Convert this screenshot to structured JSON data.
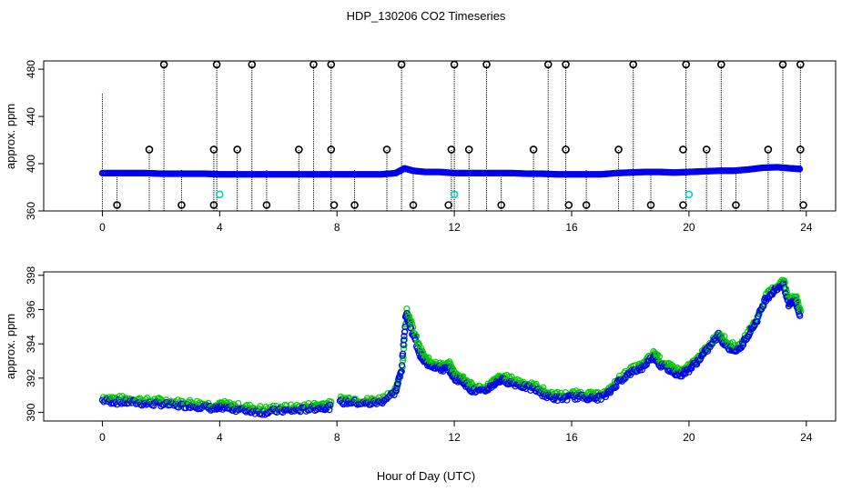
{
  "chart_data": [
    {
      "type": "scatter",
      "panel": "top",
      "title": "HDP_130206  CO2 Timeseries",
      "xlabel": "",
      "ylabel": "approx. ppm",
      "xlim": [
        -2,
        25
      ],
      "ylim": [
        360,
        487
      ],
      "x_ticks": [
        0,
        4,
        8,
        12,
        16,
        20,
        24
      ],
      "y_ticks": [
        360,
        400,
        440,
        480
      ],
      "colors": {
        "main": "#0000ee",
        "flag": "#000000",
        "cal": "#00cccc",
        "drop": "#000000"
      },
      "series": [
        {
          "name": "co2_main",
          "style": "circles",
          "points": [
            [
              0,
              392
            ],
            [
              0.5,
              392
            ],
            [
              1,
              392
            ],
            [
              1.5,
              392
            ],
            [
              2,
              391.5
            ],
            [
              2.5,
              391.5
            ],
            [
              3,
              391.5
            ],
            [
              3.5,
              391.5
            ],
            [
              4,
              391
            ],
            [
              4.5,
              391
            ],
            [
              5,
              391
            ],
            [
              5.5,
              391
            ],
            [
              6,
              391
            ],
            [
              6.5,
              391
            ],
            [
              7,
              391
            ],
            [
              7.5,
              391
            ],
            [
              8,
              391
            ],
            [
              8.5,
              391
            ],
            [
              9,
              391
            ],
            [
              9.5,
              391
            ],
            [
              10,
              392
            ],
            [
              10.3,
              396
            ],
            [
              10.6,
              394
            ],
            [
              11,
              393
            ],
            [
              11.5,
              393
            ],
            [
              12,
              392
            ],
            [
              12.5,
              392
            ],
            [
              13,
              392
            ],
            [
              13.5,
              392
            ],
            [
              14,
              392
            ],
            [
              14.5,
              391.5
            ],
            [
              15,
              391.5
            ],
            [
              15.5,
              391
            ],
            [
              16,
              391
            ],
            [
              16.5,
              391
            ],
            [
              17,
              391
            ],
            [
              17.5,
              392
            ],
            [
              18,
              392.5
            ],
            [
              18.5,
              393
            ],
            [
              19,
              393
            ],
            [
              19.5,
              392.5
            ],
            [
              20,
              393
            ],
            [
              20.5,
              393.5
            ],
            [
              21,
              394
            ],
            [
              21.5,
              394
            ],
            [
              22,
              395
            ],
            [
              22.5,
              396.5
            ],
            [
              23,
              397
            ],
            [
              23.5,
              396
            ],
            [
              23.8,
              395.5
            ]
          ]
        },
        {
          "name": "flagged_high",
          "style": "open-circles",
          "points": [
            [
              2.1,
              484
            ],
            [
              3.9,
              484
            ],
            [
              5.1,
              484
            ],
            [
              7.2,
              484
            ],
            [
              7.8,
              484
            ],
            [
              10.2,
              484
            ],
            [
              12,
              484
            ],
            [
              13.1,
              484
            ],
            [
              15.2,
              484
            ],
            [
              15.8,
              484
            ],
            [
              18.1,
              484
            ],
            [
              19.9,
              484
            ],
            [
              21.1,
              484
            ],
            [
              23.2,
              484
            ],
            [
              23.8,
              484
            ]
          ]
        },
        {
          "name": "flagged_mid",
          "style": "open-circles",
          "points": [
            [
              1.6,
              412
            ],
            [
              3.8,
              412
            ],
            [
              4.6,
              412
            ],
            [
              6.7,
              412
            ],
            [
              7.8,
              412
            ],
            [
              9.7,
              412
            ],
            [
              11.9,
              412
            ],
            [
              12.5,
              412
            ],
            [
              14.7,
              412
            ],
            [
              15.8,
              412
            ],
            [
              17.6,
              412
            ],
            [
              19.8,
              412
            ],
            [
              20.6,
              412
            ],
            [
              22.7,
              412
            ],
            [
              23.8,
              412
            ]
          ]
        },
        {
          "name": "flagged_low",
          "style": "open-circles",
          "points": [
            [
              0.5,
              365
            ],
            [
              2.7,
              365
            ],
            [
              3.8,
              365
            ],
            [
              5.6,
              365
            ],
            [
              7.9,
              365
            ],
            [
              8.6,
              365
            ],
            [
              10.6,
              365
            ],
            [
              11.8,
              365
            ],
            [
              13.6,
              365
            ],
            [
              15.9,
              365
            ],
            [
              16.5,
              365
            ],
            [
              18.7,
              365
            ],
            [
              19.8,
              365
            ],
            [
              21.6,
              365
            ],
            [
              23.9,
              365
            ]
          ]
        },
        {
          "name": "cal_points",
          "style": "cyan-circles",
          "points": [
            [
              4,
              374
            ],
            [
              12,
              374
            ],
            [
              20,
              374
            ]
          ]
        },
        {
          "name": "dropouts",
          "style": "vertical-lines",
          "points": [
            [
              0,
              460
            ],
            [
              0.5,
              395
            ],
            [
              1.6,
              412
            ],
            [
              2.1,
              484
            ],
            [
              2.7,
              395
            ],
            [
              3.8,
              412
            ],
            [
              3.9,
              484
            ],
            [
              4.6,
              412
            ],
            [
              5.1,
              484
            ],
            [
              5.6,
              395
            ],
            [
              6.7,
              412
            ],
            [
              7.2,
              484
            ],
            [
              7.8,
              484
            ],
            [
              8.6,
              395
            ],
            [
              9.7,
              412
            ],
            [
              10.2,
              484
            ],
            [
              10.6,
              395
            ],
            [
              11.9,
              412
            ],
            [
              12,
              484
            ],
            [
              12.5,
              412
            ],
            [
              13.1,
              484
            ],
            [
              13.6,
              395
            ],
            [
              14.7,
              412
            ],
            [
              15.2,
              484
            ],
            [
              15.8,
              484
            ],
            [
              16.5,
              395
            ],
            [
              17.6,
              412
            ],
            [
              18.1,
              484
            ],
            [
              18.7,
              395
            ],
            [
              19.9,
              484
            ],
            [
              20.6,
              412
            ],
            [
              21.1,
              484
            ],
            [
              21.6,
              395
            ],
            [
              22.7,
              412
            ],
            [
              23.2,
              484
            ],
            [
              23.8,
              484
            ]
          ]
        }
      ]
    },
    {
      "type": "scatter",
      "panel": "bottom",
      "title": "",
      "xlabel": "Hour of Day (UTC)",
      "ylabel": "approx. ppm",
      "xlim": [
        -2,
        25
      ],
      "ylim": [
        389.5,
        398.2
      ],
      "x_ticks": [
        0,
        4,
        8,
        12,
        16,
        20,
        24
      ],
      "y_ticks": [
        390,
        392,
        394,
        396,
        398
      ],
      "colors": {
        "main": "#0000ee",
        "alt": "#00cc00"
      },
      "series": [
        {
          "name": "co2_fine",
          "style": "circles",
          "points": [
            [
              0,
              390.7
            ],
            [
              0.5,
              390.6
            ],
            [
              1,
              390.6
            ],
            [
              1.5,
              390.5
            ],
            [
              2,
              390.5
            ],
            [
              2.5,
              390.4
            ],
            [
              3,
              390.4
            ],
            [
              3.5,
              390.3
            ],
            [
              3.9,
              390.2
            ],
            [
              4.1,
              390.3
            ],
            [
              4.5,
              390.2
            ],
            [
              5,
              390.1
            ],
            [
              5.5,
              390.0
            ],
            [
              6,
              390.1
            ],
            [
              6.5,
              390.1
            ],
            [
              7,
              390.2
            ],
            [
              7.5,
              390.3
            ],
            [
              7.8,
              390.3
            ],
            [
              8.1,
              390.6
            ],
            [
              8.5,
              390.6
            ],
            [
              9,
              390.5
            ],
            [
              9.5,
              390.6
            ],
            [
              10,
              391.2
            ],
            [
              10.2,
              392.5
            ],
            [
              10.35,
              395.8
            ],
            [
              10.5,
              395.0
            ],
            [
              10.8,
              393.5
            ],
            [
              11,
              392.9
            ],
            [
              11.3,
              392.7
            ],
            [
              11.6,
              392.5
            ],
            [
              11.8,
              392.6
            ],
            [
              12,
              392.0
            ],
            [
              12.3,
              391.8
            ],
            [
              12.6,
              391.3
            ],
            [
              13,
              391.2
            ],
            [
              13.3,
              391.6
            ],
            [
              13.6,
              391.9
            ],
            [
              14,
              391.7
            ],
            [
              14.4,
              391.5
            ],
            [
              14.8,
              391.3
            ],
            [
              15.2,
              390.9
            ],
            [
              15.6,
              390.8
            ],
            [
              16,
              390.9
            ],
            [
              16.4,
              390.9
            ],
            [
              16.8,
              390.8
            ],
            [
              17.2,
              391.0
            ],
            [
              17.6,
              391.8
            ],
            [
              18,
              392.3
            ],
            [
              18.4,
              392.6
            ],
            [
              18.8,
              393.3
            ],
            [
              19,
              392.8
            ],
            [
              19.4,
              392.4
            ],
            [
              19.7,
              392.2
            ],
            [
              20,
              392.5
            ],
            [
              20.3,
              393.0
            ],
            [
              20.6,
              393.6
            ],
            [
              21,
              394.5
            ],
            [
              21.3,
              393.8
            ],
            [
              21.7,
              393.6
            ],
            [
              22,
              394.5
            ],
            [
              22.3,
              395.3
            ],
            [
              22.6,
              396.6
            ],
            [
              22.9,
              397.1
            ],
            [
              23.2,
              397.5
            ],
            [
              23.4,
              396.3
            ],
            [
              23.6,
              396.6
            ],
            [
              23.8,
              395.6
            ]
          ]
        }
      ]
    }
  ]
}
